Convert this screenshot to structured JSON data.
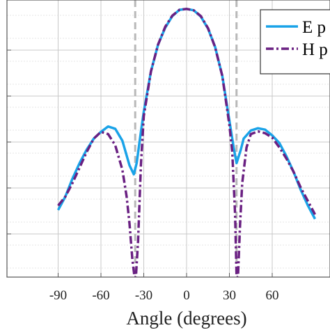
{
  "chart_data": {
    "type": "line",
    "title": "",
    "xlabel": "Angle (degrees)",
    "ylabel": "",
    "xlim": [
      -90,
      90
    ],
    "ylim": [
      -60,
      2
    ],
    "x_ticks": [
      -90,
      -60,
      -30,
      0,
      30,
      60
    ],
    "x_tick_labels": [
      "-90",
      "-60",
      "-30",
      "0",
      "30",
      "60"
    ],
    "grid": true,
    "legend_position": "top-right",
    "reference_lines": [
      -36,
      35
    ],
    "series": [
      {
        "name": "E p",
        "color": "#1aa3e8",
        "style": "solid",
        "x": [
          -90,
          -85,
          -80,
          -75,
          -70,
          -65,
          -60,
          -55,
          -50,
          -45,
          -40,
          -37,
          -35,
          -32,
          -30,
          -25,
          -20,
          -15,
          -10,
          -5,
          0,
          5,
          10,
          15,
          20,
          25,
          30,
          33,
          35,
          38,
          40,
          45,
          50,
          55,
          60,
          65,
          70,
          75,
          80,
          85,
          90
        ],
        "y": [
          -45,
          -42,
          -38,
          -34.5,
          -31.5,
          -29,
          -27.5,
          -26.3,
          -26.8,
          -29.5,
          -35,
          -37,
          -34.5,
          -27.5,
          -23,
          -14,
          -8,
          -4.2,
          -1.6,
          -0.2,
          0,
          -0.3,
          -1.7,
          -4.4,
          -8.5,
          -15,
          -25,
          -31,
          -34.5,
          -31.5,
          -29,
          -27.2,
          -26.7,
          -27,
          -28.3,
          -30,
          -33,
          -36.5,
          -40.5,
          -44,
          -47
        ]
      },
      {
        "name": "H p",
        "color": "#6a2082",
        "style": "dashdot",
        "x": [
          -90,
          -85,
          -80,
          -75,
          -70,
          -65,
          -60,
          -55,
          -50,
          -45,
          -42,
          -40,
          -38,
          -36.5,
          -35.5,
          -34,
          -32,
          -30,
          -25,
          -20,
          -15,
          -10,
          -5,
          0,
          5,
          10,
          15,
          20,
          25,
          30,
          32,
          34,
          35,
          36,
          37.5,
          39,
          42,
          45,
          50,
          55,
          60,
          65,
          70,
          75,
          80,
          85,
          90
        ],
        "y": [
          -44,
          -42,
          -39,
          -35.5,
          -32,
          -29,
          -27.5,
          -28,
          -30.5,
          -36,
          -42,
          -48,
          -56,
          -60,
          -60,
          -52,
          -35,
          -24,
          -14,
          -8,
          -4,
          -1.5,
          -0.2,
          0,
          -0.3,
          -1.6,
          -4.3,
          -8.6,
          -15,
          -26,
          -32,
          -46,
          -60,
          -60,
          -48,
          -39,
          -31,
          -28,
          -27.4,
          -27.8,
          -28.8,
          -31,
          -33.5,
          -36.5,
          -40,
          -43,
          -46
        ]
      }
    ]
  }
}
